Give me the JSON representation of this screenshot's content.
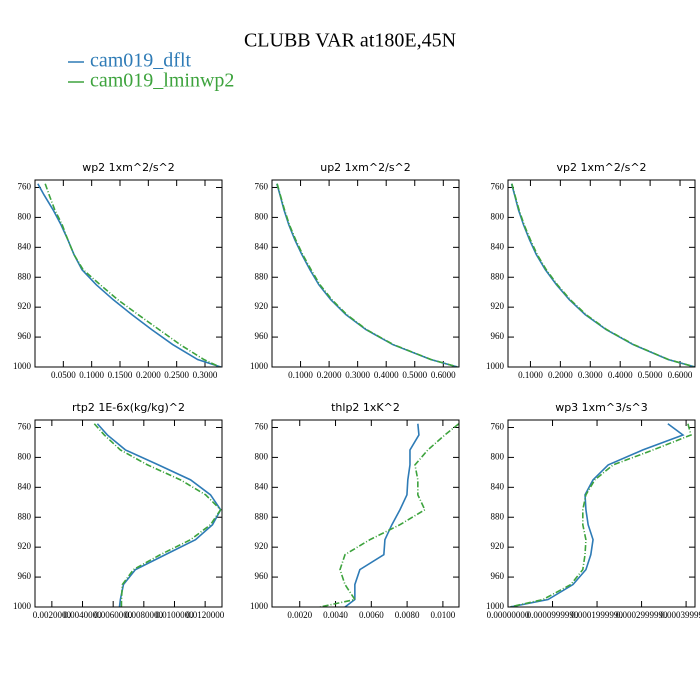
{
  "title": "CLUBB VAR at180E,45N",
  "chart_data": [
    {
      "type": "line",
      "title": "wp2  1xm^2/s^2",
      "y": [
        755,
        770,
        790,
        810,
        830,
        850,
        870,
        890,
        910,
        930,
        950,
        970,
        990,
        1000
      ],
      "series": [
        {
          "name": "cam019_dflt",
          "color": "#2e7bb6",
          "linestyle": "solid",
          "values": [
            0.005,
            0.016,
            0.032,
            0.046,
            0.058,
            0.069,
            0.083,
            0.108,
            0.138,
            0.171,
            0.206,
            0.243,
            0.287,
            0.328
          ]
        },
        {
          "name": "cam019_lminwp2",
          "color": "#3da33d",
          "linestyle": "dashdot",
          "values": [
            0.018,
            0.025,
            0.035,
            0.048,
            0.058,
            0.069,
            0.085,
            0.115,
            0.146,
            0.182,
            0.219,
            0.256,
            0.298,
            0.326
          ]
        }
      ],
      "xlim": [
        0,
        0.33
      ],
      "xticks": [
        {
          "value": 0.05,
          "label": "0.0500"
        },
        {
          "value": 0.1,
          "label": "0.1000"
        },
        {
          "value": 0.15,
          "label": "0.1500"
        },
        {
          "value": 0.2,
          "label": "0.2000"
        },
        {
          "value": 0.25,
          "label": "0.2500"
        },
        {
          "value": 0.3,
          "label": "0.3000"
        }
      ],
      "ylim": [
        1000,
        750
      ],
      "yticks": [
        760,
        800,
        840,
        880,
        920,
        960,
        1000
      ]
    },
    {
      "type": "line",
      "title": "up2  1xm^2/s^2",
      "y": [
        755,
        770,
        790,
        810,
        830,
        850,
        870,
        890,
        910,
        930,
        950,
        970,
        990,
        1000
      ],
      "series": [
        {
          "name": "cam019_dflt",
          "color": "#2e7bb6",
          "linestyle": "solid",
          "values": [
            0.017,
            0.028,
            0.042,
            0.059,
            0.08,
            0.105,
            0.133,
            0.164,
            0.206,
            0.259,
            0.329,
            0.423,
            0.556,
            0.65
          ]
        },
        {
          "name": "cam019_lminwp2",
          "color": "#3da33d",
          "linestyle": "dashdot",
          "values": [
            0.018,
            0.029,
            0.044,
            0.061,
            0.083,
            0.108,
            0.137,
            0.168,
            0.21,
            0.262,
            0.331,
            0.425,
            0.557,
            0.65
          ]
        }
      ],
      "xlim": [
        0,
        0.655
      ],
      "xticks": [
        {
          "value": 0.1,
          "label": "0.1000"
        },
        {
          "value": 0.2,
          "label": "0.2000"
        },
        {
          "value": 0.3,
          "label": "0.3000"
        },
        {
          "value": 0.4,
          "label": "0.4000"
        },
        {
          "value": 0.5,
          "label": "0.5000"
        },
        {
          "value": 0.6,
          "label": "0.6000"
        }
      ],
      "ylim": [
        1000,
        750
      ],
      "yticks": [
        760,
        800,
        840,
        880,
        920,
        960,
        1000
      ]
    },
    {
      "type": "line",
      "title": "vp2  1xm^2/s^2",
      "y": [
        755,
        770,
        790,
        810,
        830,
        850,
        870,
        890,
        910,
        930,
        950,
        970,
        990,
        1000
      ],
      "series": [
        {
          "name": "cam019_dflt",
          "color": "#2e7bb6",
          "linestyle": "solid",
          "values": [
            0.037,
            0.047,
            0.06,
            0.077,
            0.097,
            0.12,
            0.15,
            0.187,
            0.23,
            0.283,
            0.353,
            0.443,
            0.56,
            0.65
          ]
        },
        {
          "name": "cam019_lminwp2",
          "color": "#3da33d",
          "linestyle": "dashdot",
          "values": [
            0.038,
            0.048,
            0.062,
            0.079,
            0.1,
            0.123,
            0.153,
            0.19,
            0.233,
            0.286,
            0.355,
            0.445,
            0.561,
            0.65
          ]
        }
      ],
      "xlim": [
        0.025,
        0.65
      ],
      "xticks": [
        {
          "value": 0.1,
          "label": "0.1000"
        },
        {
          "value": 0.2,
          "label": "0.2000"
        },
        {
          "value": 0.3,
          "label": "0.3000"
        },
        {
          "value": 0.4,
          "label": "0.4000"
        },
        {
          "value": 0.5,
          "label": "0.5000"
        },
        {
          "value": 0.6,
          "label": "0.6000"
        }
      ],
      "ylim": [
        1000,
        750
      ],
      "yticks": [
        760,
        800,
        840,
        880,
        920,
        960,
        1000
      ]
    },
    {
      "type": "line",
      "title": "rtp2  1E-6x(kg/kg)^2",
      "y": [
        755,
        770,
        790,
        810,
        830,
        850,
        870,
        890,
        910,
        930,
        950,
        970,
        990,
        1000
      ],
      "series": [
        {
          "name": "cam019_dflt",
          "color": "#2e7bb6",
          "linestyle": "solid",
          "values": [
            0.00497,
            0.00562,
            0.0068,
            0.00895,
            0.01105,
            0.01235,
            0.01301,
            0.01248,
            0.01137,
            0.00941,
            0.00745,
            0.00667,
            0.00647,
            0.00641
          ]
        },
        {
          "name": "cam019_lminwp2",
          "color": "#3da33d",
          "linestyle": "dashdot",
          "values": [
            0.00477,
            0.00542,
            0.00647,
            0.00824,
            0.01039,
            0.01203,
            0.01301,
            0.01235,
            0.01105,
            0.00908,
            0.00732,
            0.0066,
            0.00654,
            0.00654
          ]
        }
      ],
      "xlim": [
        0.0009,
        0.0131
      ],
      "xticks": [
        {
          "value": 0.002,
          "label": "0.0020000"
        },
        {
          "value": 0.004,
          "label": "0.0040000"
        },
        {
          "value": 0.006,
          "label": "0.0060000"
        },
        {
          "value": 0.008,
          "label": "0.0080000"
        },
        {
          "value": 0.01,
          "label": "0.0100000"
        },
        {
          "value": 0.012,
          "label": "0.0120000"
        }
      ],
      "ylim": [
        1000,
        750
      ],
      "yticks": [
        760,
        800,
        840,
        880,
        920,
        960,
        1000
      ]
    },
    {
      "type": "line",
      "title": "thlp2  1xK^2",
      "y": [
        755,
        770,
        790,
        810,
        830,
        850,
        870,
        890,
        910,
        930,
        950,
        970,
        990,
        1000
      ],
      "series": [
        {
          "name": "cam019_dflt",
          "color": "#2e7bb6",
          "linestyle": "solid",
          "values": [
            0.0086,
            0.00866,
            0.00816,
            0.00816,
            0.00804,
            0.00799,
            0.0076,
            0.00715,
            0.00676,
            0.0067,
            0.00536,
            0.00508,
            0.00508,
            0.00453
          ]
        },
        {
          "name": "cam019_lminwp2",
          "color": "#3da33d",
          "linestyle": "dashdot",
          "values": [
            0.01089,
            0.01011,
            0.00916,
            0.00844,
            0.0086,
            0.0086,
            0.00899,
            0.0076,
            0.00592,
            0.00453,
            0.00425,
            0.00453,
            0.00508,
            0.00313
          ]
        }
      ],
      "xlim": [
        0.00045,
        0.0109
      ],
      "xticks": [
        {
          "value": 0.002,
          "label": "0.0020"
        },
        {
          "value": 0.004,
          "label": "0.0040"
        },
        {
          "value": 0.006,
          "label": "0.0060"
        },
        {
          "value": 0.008,
          "label": "0.0080"
        },
        {
          "value": 0.01,
          "label": "0.0100"
        }
      ],
      "ylim": [
        1000,
        750
      ],
      "yticks": [
        760,
        800,
        840,
        880,
        920,
        960,
        1000
      ]
    },
    {
      "type": "line",
      "title": "wp3  1xm^3/s^3",
      "y": [
        755,
        770,
        790,
        810,
        830,
        850,
        870,
        890,
        910,
        930,
        950,
        970,
        990,
        1000
      ],
      "series": [
        {
          "name": "cam019_dflt",
          "color": "#2e7bb6",
          "linestyle": "solid",
          "values": [
            0.000359,
            0.000393,
            0.000303,
            0.000225,
            0.000191,
            0.000173,
            0.000175,
            0.00018,
            0.000191,
            0.000186,
            0.000175,
            0.000146,
            9e-05,
            4.5e-06
          ]
        },
        {
          "name": "cam019_lminwp2",
          "color": "#3da33d",
          "linestyle": "dashdot",
          "values": [
            0.000404,
            0.000411,
            0.000326,
            0.000236,
            0.000195,
            0.000175,
            0.000168,
            0.000168,
            0.000175,
            0.000173,
            0.000168,
            0.000141,
            7.86e-05,
            4.5e-06
          ]
        }
      ],
      "xlim": [
        0,
        0.00042
      ],
      "xticks": [
        {
          "value": 0,
          "label": "0.00000000"
        },
        {
          "value": 0.0001,
          "label": "0.0000999990"
        },
        {
          "value": 0.0002,
          "label": "0.0001999990"
        },
        {
          "value": 0.0003,
          "label": "0.0002999990"
        },
        {
          "value": 0.0004,
          "label": "0.0003999970"
        }
      ],
      "ylim": [
        1000,
        750
      ],
      "yticks": [
        760,
        800,
        840,
        880,
        920,
        960,
        1000
      ]
    }
  ]
}
